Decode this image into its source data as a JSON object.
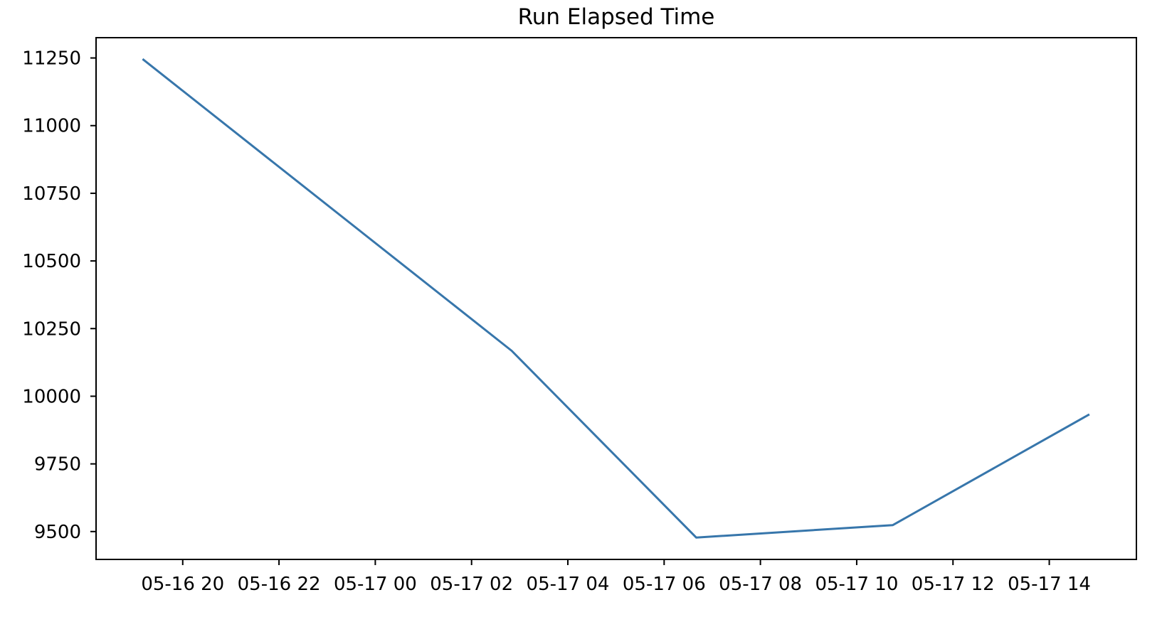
{
  "chart_data": {
    "type": "line",
    "title": "Run Elapsed Time",
    "xlabel": "",
    "ylabel": "",
    "grid": false,
    "legend": null,
    "background_color": "#ffffff",
    "axis_color": "#000000",
    "series": [
      {
        "name": "run-elapsed-time",
        "color": "#3776ab",
        "points": [
          {
            "x": "05-16 19:10",
            "y": 11246
          },
          {
            "x": "05-17 02:50",
            "y": 10168
          },
          {
            "x": "05-17 06:40",
            "y": 9478
          },
          {
            "x": "05-17 10:45",
            "y": 9524
          },
          {
            "x": "05-17 14:50",
            "y": 9933
          }
        ]
      }
    ],
    "x_tick_labels": [
      "05-16 20",
      "05-16 22",
      "05-17 00",
      "05-17 02",
      "05-17 04",
      "05-17 06",
      "05-17 08",
      "05-17 10",
      "05-17 12",
      "05-17 14"
    ],
    "y_tick_labels": [
      "9500",
      "9750",
      "10000",
      "10250",
      "10500",
      "10750",
      "11000",
      "11250"
    ],
    "y_ticks": [
      9500,
      9750,
      10000,
      10250,
      10500,
      10750,
      11000,
      11250
    ],
    "xlim_hours_from_05_16_00": [
      18.2,
      39.81
    ],
    "ylim": [
      9397,
      11325
    ]
  }
}
